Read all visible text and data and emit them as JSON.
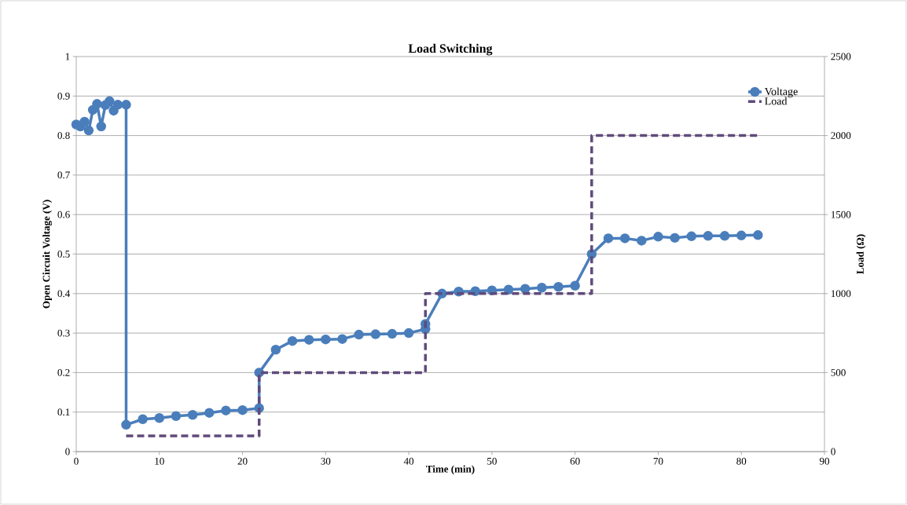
{
  "chart_data": {
    "type": "line",
    "title": "Load Switching",
    "xlabel": "Time (min)",
    "ylabel": "Open Circuit Voltage (V)",
    "y2label": "Load (Ω)",
    "xlim": [
      0,
      90
    ],
    "xticks": [
      0,
      10,
      20,
      30,
      40,
      50,
      60,
      70,
      80,
      90
    ],
    "ylim": [
      0,
      1
    ],
    "yticks": [
      0,
      0.1,
      0.2,
      0.3,
      0.4,
      0.5,
      0.6,
      0.7,
      0.8,
      0.9,
      1
    ],
    "y2lim": [
      0,
      2500
    ],
    "y2ticks": [
      0,
      500,
      1000,
      1500,
      2000,
      2500
    ],
    "grid": "y",
    "legend": "top right",
    "series": [
      {
        "name": "Voltage",
        "color": "#4a7ebb",
        "marker": "circle",
        "line_style": "solid",
        "x": [
          0,
          0.5,
          1,
          1.5,
          2,
          2.5,
          3,
          3.5,
          4,
          4.5,
          5,
          6,
          6,
          8,
          10,
          12,
          14,
          16,
          18,
          20,
          22,
          22,
          24,
          26,
          28,
          30,
          32,
          34,
          36,
          38,
          40,
          42,
          42,
          44,
          46,
          48,
          50,
          52,
          54,
          56,
          58,
          60,
          62,
          64,
          66,
          68,
          70,
          72,
          74,
          76,
          78,
          80,
          82
        ],
        "values": [
          0.828,
          0.823,
          0.835,
          0.813,
          0.865,
          0.88,
          0.823,
          0.877,
          0.887,
          0.863,
          0.878,
          0.878,
          0.068,
          0.082,
          0.085,
          0.09,
          0.093,
          0.098,
          0.104,
          0.105,
          0.11,
          0.2,
          0.258,
          0.28,
          0.283,
          0.284,
          0.285,
          0.296,
          0.297,
          0.298,
          0.3,
          0.31,
          0.323,
          0.4,
          0.405,
          0.406,
          0.408,
          0.41,
          0.412,
          0.415,
          0.417,
          0.42,
          0.5,
          0.54,
          0.54,
          0.534,
          0.544,
          0.541,
          0.545,
          0.546,
          0.546,
          0.547,
          0.548
        ]
      },
      {
        "name": "Load",
        "color": "#604a7b",
        "marker": "none",
        "line_style": "dashed",
        "axis": "y2",
        "x": [
          6,
          22,
          22,
          42,
          42,
          62,
          62,
          82
        ],
        "values": [
          100,
          100,
          500,
          500,
          1000,
          1000,
          2000,
          2000
        ]
      }
    ]
  }
}
